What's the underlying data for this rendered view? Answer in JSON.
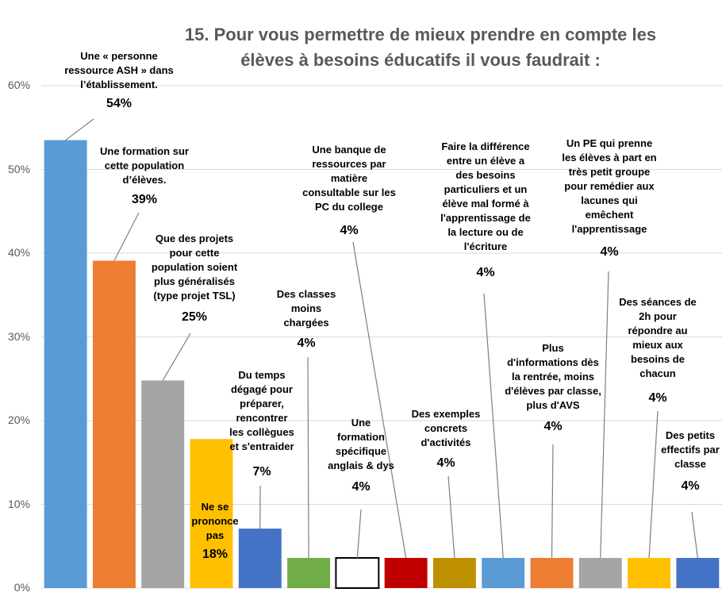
{
  "chart_data": {
    "type": "bar",
    "title": "15. Pour vous permettre de mieux prendre en compte les\nélèves à besoins éducatifs il vous faudrait :",
    "categories": [
      "Une « personne\nressource ASH » dans\nl’établissement.",
      "Une formation sur\ncette population\nd’élèves.",
      "Que des projets\npour cette\npopulation soient\nplus généralisés\n(type projet TSL)",
      "Ne se\nprononce\npas",
      "Du temps\ndégagé pour\npréparer,\nrencontrer\nles collègues\net s'entraider",
      "Des classes\nmoins\nchargées",
      "Une\nformation\nspécifique\nanglais & dys",
      "Une banque de\nressources par\nmatière\nconsultable sur les\nPC du college",
      "Des exemples\nconcrets\nd'activités",
      "Faire la différence\nentre un élève a\ndes besoins\nparticuliers et un\nélève mal formé à\nl'apprentissage de\nla lecture ou de\nl'écriture",
      "Plus\nd'informations dès\nla rentrée, moins\nd'élèves par classe,\nplus d'AVS",
      "Un PE qui prenne\nles élèves à part en\ntrès petit groupe\npour remédier aux\nlacunes qui\nemêchent\nl'apprentissage",
      "Des séances de\n2h pour\nrépondre au\nmieux aux\nbesoins de\nchacun",
      "Des petits\neffectifs par\nclasse"
    ],
    "values": [
      53.5,
      39.1,
      24.8,
      17.8,
      7.1,
      3.6,
      3.6,
      3.6,
      3.6,
      3.6,
      3.6,
      3.6,
      3.6,
      3.6
    ],
    "value_labels": [
      "54%",
      "39%",
      "25%",
      "18%",
      "7%",
      "4%",
      "4%",
      "4%",
      "4%",
      "4%",
      "4%",
      "4%",
      "4%",
      "4%"
    ],
    "colors": [
      "#5b9bd5",
      "#ed7d31",
      "#a5a5a5",
      "#ffc000",
      "#4472c4",
      "#70ad47",
      "#ffffff",
      "#c00000",
      "#bf9000",
      "#5b9bd5",
      "#ed7d31",
      "#a5a5a5",
      "#ffc000",
      "#4472c4"
    ],
    "ylim": [
      0,
      60
    ],
    "yticks": [
      {
        "value": 0,
        "label": "0%"
      },
      {
        "value": 10,
        "label": "10%"
      },
      {
        "value": 20,
        "label": "20%"
      },
      {
        "value": 30,
        "label": "30%"
      },
      {
        "value": 40,
        "label": "40%"
      },
      {
        "value": 50,
        "label": "50%"
      },
      {
        "value": 60,
        "label": "60%"
      }
    ],
    "grid": true
  }
}
